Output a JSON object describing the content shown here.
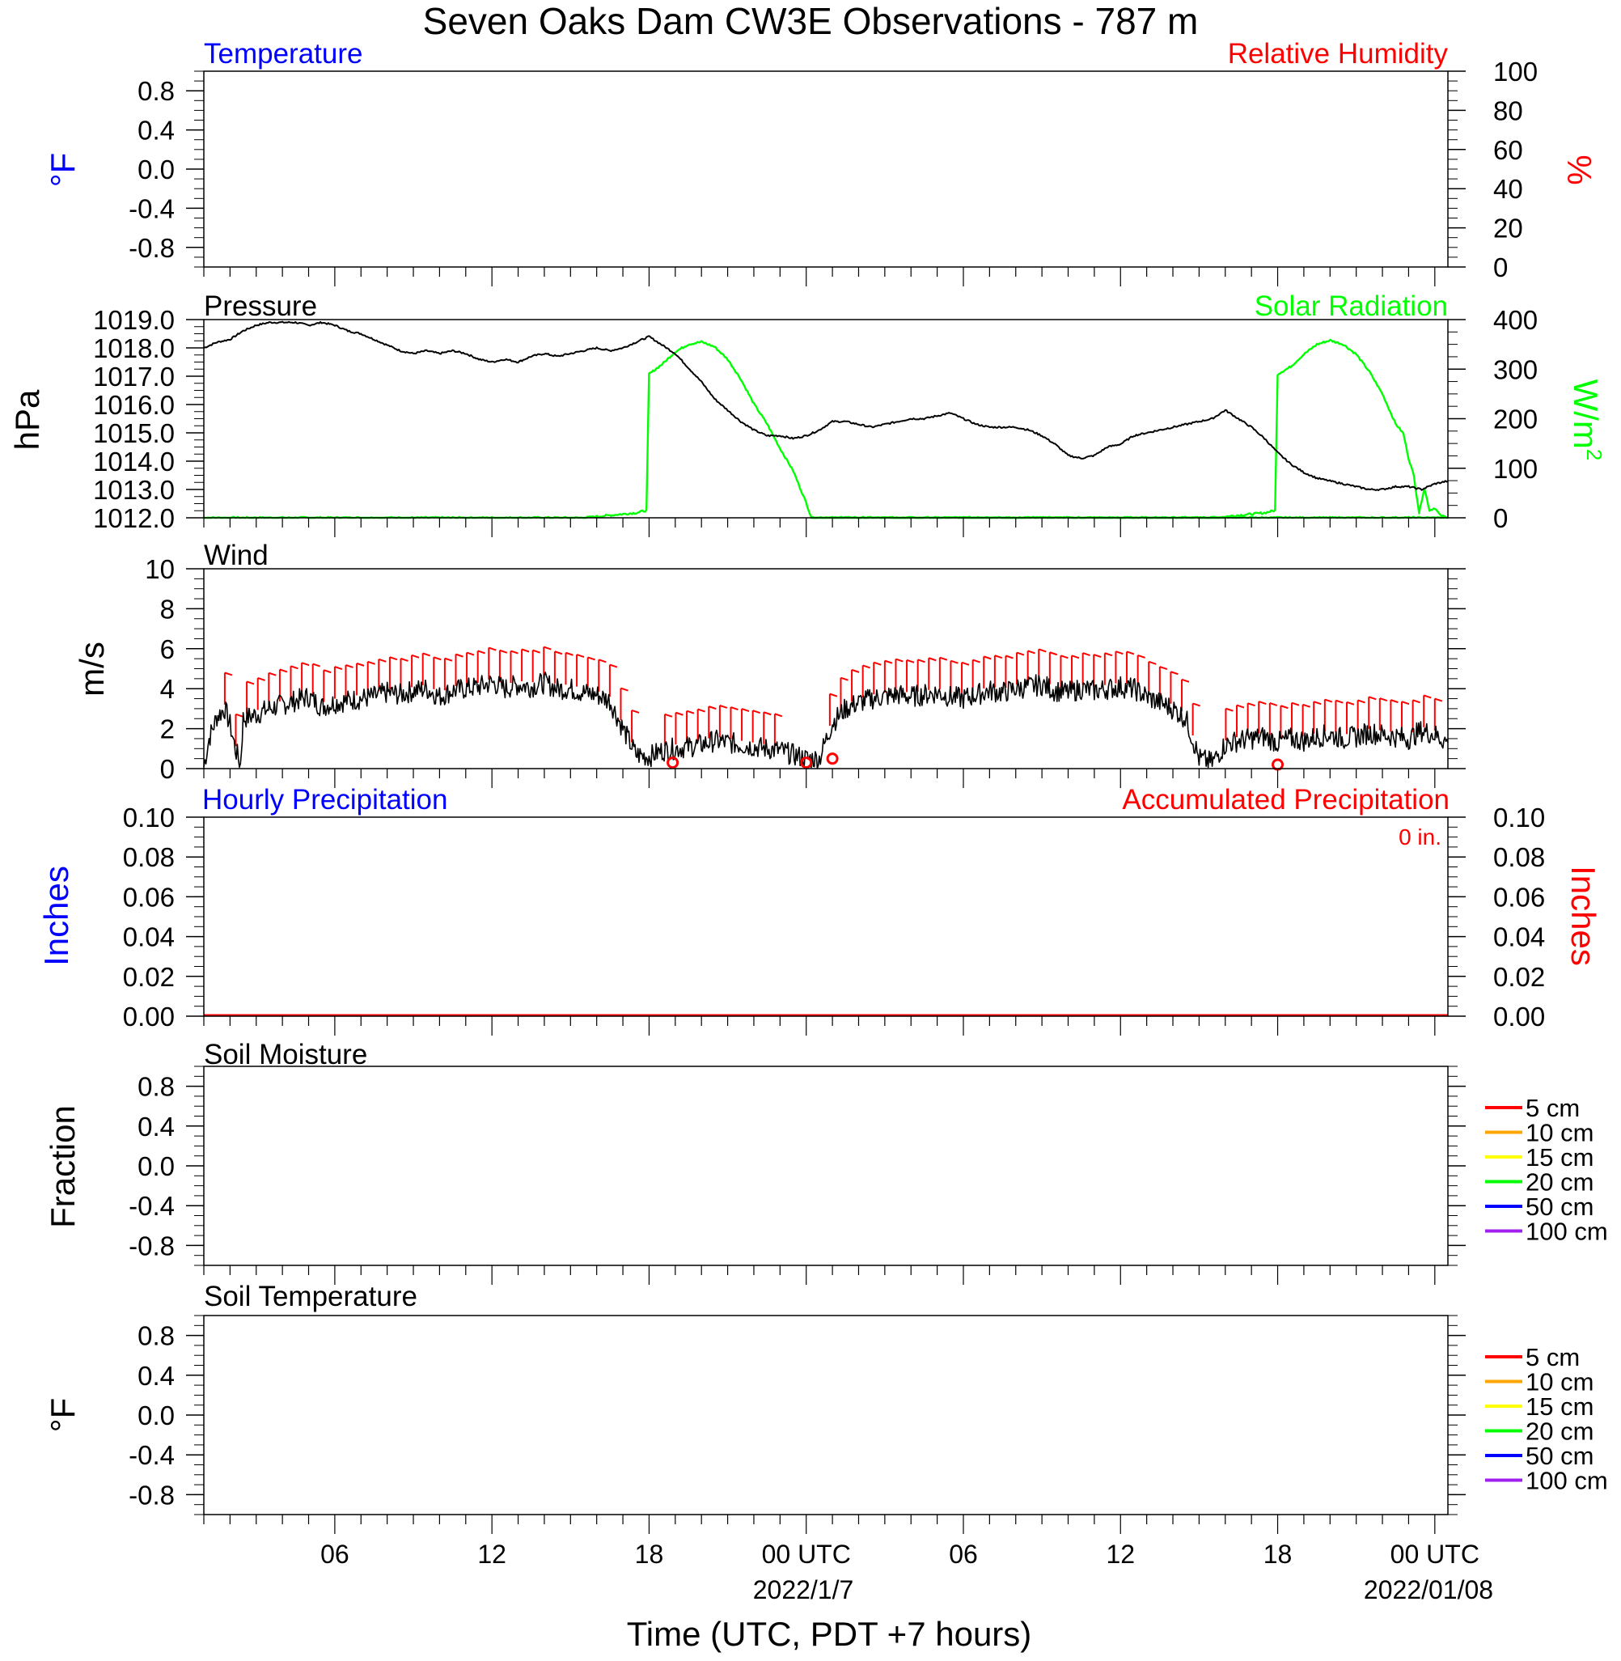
{
  "title": "Seven Oaks Dam CW3E Observations - 787 m",
  "x_axis": {
    "label": "Time (UTC, PDT +7 hours)",
    "tick_labels": [
      "06",
      "12",
      "18",
      "00 UTC",
      "06",
      "12",
      "18",
      "00 UTC"
    ],
    "date_labels": [
      "2022/1/7",
      "2022/01/08"
    ]
  },
  "colors": {
    "temperature": "#0000ff",
    "humidity": "#ff0000",
    "pressure": "#000000",
    "solar": "#00ff00",
    "wind_speed": "#000000",
    "wind_barb": "#ff0000",
    "hourly_precip": "#0000ff",
    "accum_precip": "#ff0000"
  },
  "panels": {
    "temperature": {
      "left_title": "Temperature",
      "right_title": "Relative Humidity",
      "left_units": "°F",
      "right_units": "%",
      "left_ticks": [
        "0.8",
        "0.4",
        "0.0",
        "-0.4",
        "-0.8"
      ],
      "right_ticks": [
        "100",
        "80",
        "60",
        "40",
        "20",
        "0"
      ]
    },
    "pressure": {
      "left_title": "Pressure",
      "right_title": "Solar Radiation",
      "left_units": "hPa",
      "right_units": "W/m",
      "right_units_sup": "2",
      "left_ticks": [
        "1019.0",
        "1018.0",
        "1017.0",
        "1016.0",
        "1015.0",
        "1014.0",
        "1013.0",
        "1012.0"
      ],
      "right_ticks": [
        "400",
        "300",
        "200",
        "100",
        "0"
      ]
    },
    "wind": {
      "left_title": "Wind",
      "left_units": "m/s",
      "left_ticks": [
        "10",
        "8",
        "6",
        "4",
        "2",
        "0"
      ]
    },
    "precip": {
      "left_title": "Hourly Precipitation",
      "right_title": "Accumulated Precipitation",
      "total_label": "0 in.",
      "left_units": "Inches",
      "right_units": "Inches",
      "left_ticks": [
        "0.10",
        "0.08",
        "0.06",
        "0.04",
        "0.02",
        "0.00"
      ],
      "right_ticks": [
        "0.10",
        "0.08",
        "0.06",
        "0.04",
        "0.02",
        "0.00"
      ]
    },
    "soil_moisture": {
      "left_title": "Soil Moisture",
      "left_units": "Fraction",
      "left_ticks": [
        "0.8",
        "0.4",
        "0.0",
        "-0.4",
        "-0.8"
      ],
      "legend": [
        {
          "label": "5 cm",
          "color": "#ff0000"
        },
        {
          "label": "10 cm",
          "color": "#ffa500"
        },
        {
          "label": "15 cm",
          "color": "#ffff00"
        },
        {
          "label": "20 cm",
          "color": "#00ff00"
        },
        {
          "label": "50 cm",
          "color": "#0000ff"
        },
        {
          "label": "100 cm",
          "color": "#a020f0"
        }
      ]
    },
    "soil_temperature": {
      "left_title": "Soil Temperature",
      "left_units": "°F",
      "left_ticks": [
        "0.8",
        "0.4",
        "0.0",
        "-0.4",
        "-0.8"
      ],
      "legend": [
        {
          "label": "5 cm",
          "color": "#ff0000"
        },
        {
          "label": "10 cm",
          "color": "#ffa500"
        },
        {
          "label": "15 cm",
          "color": "#ffff00"
        },
        {
          "label": "20 cm",
          "color": "#00ff00"
        },
        {
          "label": "50 cm",
          "color": "#0000ff"
        },
        {
          "label": "100 cm",
          "color": "#a020f0"
        }
      ]
    }
  },
  "chart_data": [
    {
      "type": "line",
      "panel": "temperature",
      "title": "Temperature",
      "series": [],
      "ylabel": "°F",
      "ylim": [
        -1,
        1
      ],
      "y2label": "%",
      "y2lim": [
        0,
        100
      ],
      "xlim_hours": [
        1,
        48.5
      ]
    },
    {
      "type": "line",
      "panel": "pressure",
      "title": "Pressure",
      "ylabel": "hPa",
      "ylim": [
        1012,
        1019
      ],
      "y2label": "W/m2",
      "y2lim": [
        0,
        400
      ],
      "xlim_hours": [
        1,
        48.5
      ],
      "series": [
        {
          "name": "Pressure",
          "axis": "left",
          "x": [
            1,
            1.5,
            2,
            2.5,
            3,
            3.5,
            4,
            4.5,
            5,
            5.5,
            6,
            6.5,
            7,
            7.5,
            8,
            8.5,
            9,
            9.5,
            10,
            10.5,
            11,
            11.5,
            12,
            12.5,
            13,
            13.5,
            14,
            14.5,
            15,
            15.5,
            16,
            16.5,
            17,
            17.5,
            18,
            18.5,
            19,
            19.5,
            20,
            20.5,
            21,
            21.5,
            22,
            22.5,
            23,
            23.5,
            24,
            24.5,
            25,
            25.5,
            26,
            26.5,
            27,
            27.5,
            28,
            28.5,
            29,
            29.5,
            30,
            30.5,
            31,
            31.5,
            32,
            32.5,
            33,
            33.5,
            34,
            34.5,
            35,
            35.5,
            36,
            36.5,
            37,
            37.5,
            38,
            38.5,
            39,
            39.5,
            40,
            40.5,
            41,
            41.5,
            42,
            42.5,
            43,
            43.5,
            44,
            44.5,
            45,
            45.5,
            46,
            46.5,
            47,
            47.5,
            48,
            48.5
          ],
          "values": [
            1018.0,
            1018.2,
            1018.3,
            1018.6,
            1018.8,
            1018.9,
            1018.9,
            1018.9,
            1018.8,
            1018.9,
            1018.8,
            1018.6,
            1018.5,
            1018.3,
            1018.1,
            1017.9,
            1017.8,
            1017.9,
            1017.8,
            1017.9,
            1017.8,
            1017.6,
            1017.5,
            1017.6,
            1017.5,
            1017.7,
            1017.8,
            1017.7,
            1017.8,
            1017.9,
            1018.0,
            1017.9,
            1018.0,
            1018.2,
            1018.4,
            1018.1,
            1017.8,
            1017.3,
            1016.8,
            1016.2,
            1015.8,
            1015.4,
            1015.1,
            1014.9,
            1014.9,
            1014.8,
            1014.9,
            1015.1,
            1015.4,
            1015.4,
            1015.3,
            1015.2,
            1015.3,
            1015.4,
            1015.5,
            1015.5,
            1015.6,
            1015.7,
            1015.5,
            1015.3,
            1015.2,
            1015.2,
            1015.2,
            1015.1,
            1014.9,
            1014.6,
            1014.2,
            1014.1,
            1014.2,
            1014.5,
            1014.6,
            1014.9,
            1015.0,
            1015.1,
            1015.2,
            1015.3,
            1015.4,
            1015.5,
            1015.8,
            1015.5,
            1015.2,
            1014.8,
            1014.3,
            1013.9,
            1013.6,
            1013.4,
            1013.3,
            1013.2,
            1013.1,
            1013.0,
            1013.0,
            1013.1,
            1013.1,
            1013.0,
            1013.2,
            1013.3
          ]
        },
        {
          "name": "Solar Radiation",
          "axis": "right",
          "x": [
            1,
            15.5,
            16.5,
            17.5,
            17.9,
            18.0,
            18.5,
            19,
            19.5,
            20,
            20.5,
            21,
            21.5,
            22,
            22.5,
            23,
            23.5,
            24,
            24.2,
            48.5
          ],
          "values": [
            0,
            0,
            5,
            10,
            15,
            290,
            310,
            335,
            350,
            355,
            345,
            320,
            280,
            230,
            190,
            140,
            95,
            30,
            0,
            0
          ]
        },
        {
          "name": "Solar Radiation 2",
          "axis": "right",
          "x": [
            24.2,
            39.5,
            40.5,
            41.5,
            41.9,
            42.0,
            42.5,
            43,
            43.5,
            44,
            44.5,
            45,
            45.5,
            46,
            46.5,
            46.8,
            47,
            47.2,
            47.4,
            47.6,
            47.8,
            48,
            48.2,
            48.5
          ],
          "values": [
            0,
            0,
            5,
            10,
            15,
            290,
            305,
            330,
            350,
            358,
            350,
            330,
            295,
            250,
            190,
            170,
            120,
            85,
            10,
            60,
            15,
            20,
            5,
            0
          ]
        }
      ]
    },
    {
      "type": "line",
      "panel": "wind",
      "title": "Wind",
      "ylabel": "m/s",
      "ylim": [
        0,
        10
      ],
      "xlim_hours": [
        1,
        48.5
      ],
      "series": [
        {
          "name": "Wind speed",
          "x": [
            1,
            1.2,
            1.5,
            1.8,
            2.0,
            2.2,
            2.4,
            2.5,
            3,
            3.5,
            4,
            4.5,
            5,
            5.5,
            6,
            6.5,
            7,
            7.5,
            8,
            8.5,
            9,
            9.5,
            10,
            10.5,
            11,
            11.5,
            12,
            12.5,
            13,
            13.5,
            14,
            14.5,
            15,
            15.5,
            16,
            16.5,
            17,
            17.5,
            18,
            18.5,
            19,
            19.5,
            20,
            20.5,
            21,
            21.5,
            22,
            22.5,
            23,
            23.5,
            24,
            24.5,
            25,
            25.5,
            26,
            26.5,
            27,
            27.5,
            28,
            28.5,
            29,
            29.5,
            30,
            30.5,
            31,
            31.5,
            32,
            32.5,
            33,
            33.5,
            34,
            34.5,
            35,
            35.5,
            36,
            36.5,
            37,
            37.5,
            38,
            38.5,
            39,
            39.5,
            40,
            40.5,
            41,
            41.5,
            42,
            42.5,
            43,
            43.5,
            44,
            44.5,
            45,
            45.5,
            46,
            46.5,
            47,
            47.5,
            48,
            48.5
          ],
          "values": [
            0.1,
            1.5,
            2.6,
            3.0,
            2.2,
            1.0,
            0.2,
            2.5,
            2.7,
            3.0,
            3.2,
            3.4,
            3.6,
            3.1,
            3.3,
            3.4,
            3.5,
            3.6,
            3.8,
            3.7,
            3.9,
            4.0,
            3.6,
            3.9,
            4.0,
            4.1,
            4.3,
            4.0,
            4.2,
            4.1,
            4.3,
            4.0,
            4.0,
            3.8,
            3.7,
            3.4,
            2.0,
            0.7,
            0.6,
            0.9,
            1.0,
            1.1,
            1.2,
            1.4,
            1.3,
            1.2,
            1.1,
            1.0,
            0.9,
            0.7,
            0.5,
            0.5,
            2.3,
            3.0,
            3.3,
            3.5,
            3.6,
            3.7,
            3.6,
            3.7,
            3.8,
            3.6,
            3.5,
            3.7,
            3.9,
            3.8,
            4.0,
            4.1,
            4.2,
            3.9,
            3.8,
            4.0,
            3.9,
            4.0,
            4.1,
            4.0,
            3.6,
            3.3,
            3.0,
            2.5,
            0.5,
            0.3,
            1.2,
            1.4,
            1.5,
            1.6,
            1.3,
            1.5,
            1.4,
            1.6,
            1.7,
            1.5,
            1.6,
            1.8,
            1.7,
            1.6,
            1.5,
            1.9,
            1.7,
            1.3
          ]
        },
        {
          "name": "Calm",
          "x": [
            18.9,
            24.0,
            25.0,
            42.0
          ],
          "values": [
            0.3,
            0.3,
            0.5,
            0.2
          ]
        }
      ]
    },
    {
      "type": "line",
      "panel": "precip",
      "title": "Hourly Precipitation",
      "ylabel": "Inches",
      "ylim": [
        0,
        0.1
      ],
      "y2label": "Inches",
      "y2lim": [
        0,
        0.1
      ],
      "xlim_hours": [
        1,
        48.5
      ],
      "series": [
        {
          "name": "Accumulated Precipitation",
          "x": [
            1,
            48.5
          ],
          "values": [
            0,
            0
          ]
        }
      ]
    },
    {
      "type": "line",
      "panel": "soil_moisture",
      "title": "Soil Moisture",
      "ylabel": "Fraction",
      "ylim": [
        -1,
        1
      ],
      "xlim_hours": [
        1,
        48.5
      ],
      "series": []
    },
    {
      "type": "line",
      "panel": "soil_temperature",
      "title": "Soil Temperature",
      "ylabel": "°F",
      "ylim": [
        -1,
        1
      ],
      "xlim_hours": [
        1,
        48.5
      ],
      "series": []
    }
  ]
}
